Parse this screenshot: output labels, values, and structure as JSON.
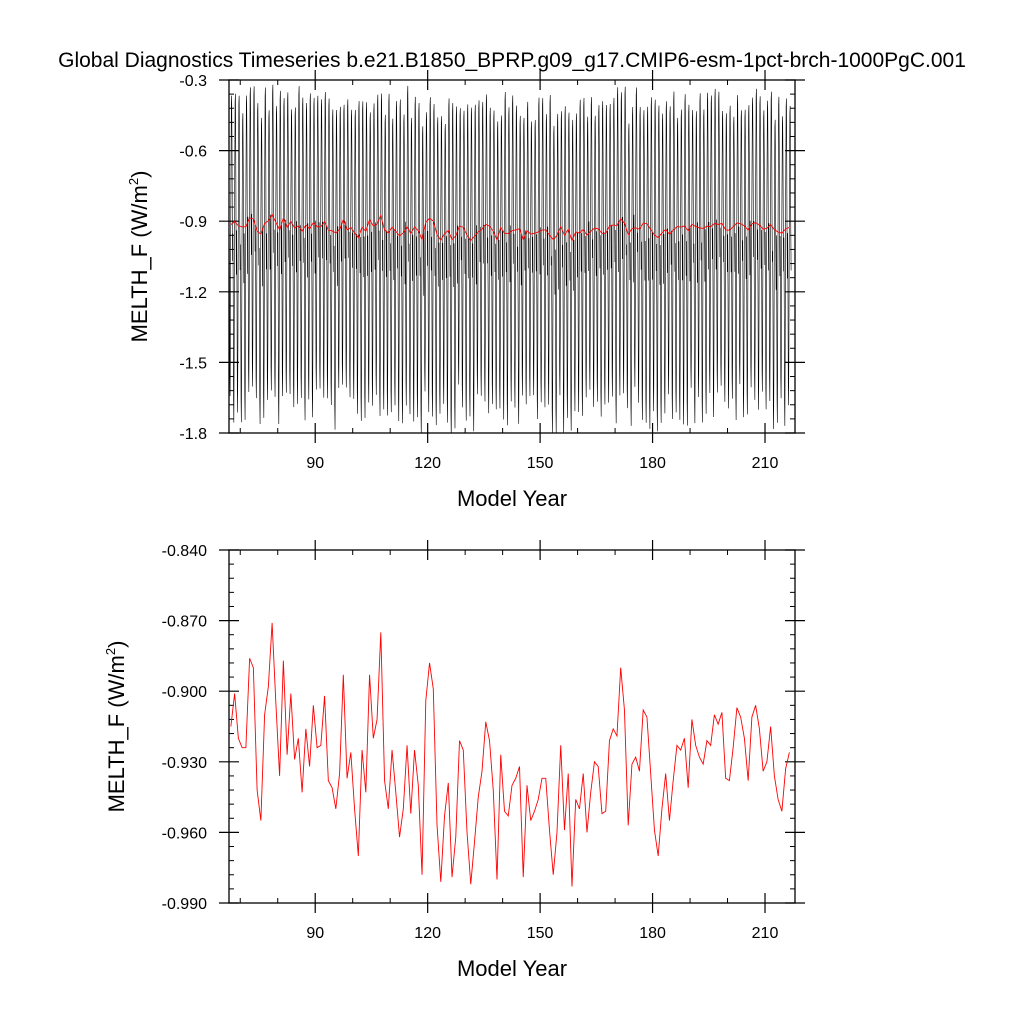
{
  "page": {
    "title": "Global Diagnostics Timeseries b.e21.B1850_BPRP.g09_g17.CMIP6-esm-1pct-brch-1000PgC.001"
  },
  "colors": {
    "monthly_series": "#000000",
    "annual_series": "#ff0000",
    "axes": "#000000",
    "background": "#ffffff"
  },
  "chart_data": [
    {
      "type": "line",
      "title": "",
      "xlabel": "Model Year",
      "ylabel_main": "MELTH_F (W/m",
      "ylabel_sup": "2",
      "ylabel_close": ")",
      "xlim": [
        67,
        218
      ],
      "ylim": [
        -1.8,
        -0.3
      ],
      "xticks": [
        90,
        120,
        150,
        180,
        210
      ],
      "xtick_labels": [
        "90",
        "120",
        "150",
        "180",
        "210"
      ],
      "yticks": [
        -0.3,
        -0.6,
        -0.9,
        -1.2,
        -1.5,
        -1.8
      ],
      "ytick_labels": [
        "-0.3",
        "-0.6",
        "-0.9",
        "-1.2",
        "-1.5",
        "-1.8"
      ],
      "grid": false,
      "series": [
        {
          "kind": "monthly",
          "note": "monthly values oscillating between about -1.78 and -0.36 each year",
          "seasonal_max": -0.4,
          "seasonal_min": -1.6,
          "color": "#000000"
        },
        {
          "kind": "annual-mean",
          "color": "#ff0000"
        }
      ]
    },
    {
      "type": "line",
      "title": "",
      "xlabel": "Model Year",
      "ylabel_main": "MELTH_F (W/m",
      "ylabel_sup": "2",
      "ylabel_close": ")",
      "xlim": [
        67,
        218
      ],
      "ylim": [
        -0.99,
        -0.84
      ],
      "xticks": [
        90,
        120,
        150,
        180,
        210
      ],
      "xtick_labels": [
        "90",
        "120",
        "150",
        "180",
        "210"
      ],
      "yticks": [
        -0.84,
        -0.87,
        -0.9,
        -0.93,
        -0.96,
        -0.99
      ],
      "ytick_labels": [
        "-0.840",
        "-0.870",
        "-0.900",
        "-0.930",
        "-0.960",
        "-0.990"
      ],
      "grid": false,
      "series": [
        {
          "kind": "annual-mean",
          "color": "#ff0000",
          "x_start": 67,
          "values": [
            -0.915,
            -0.901,
            -0.92,
            -0.924,
            -0.924,
            -0.886,
            -0.89,
            -0.942,
            -0.955,
            -0.91,
            -0.898,
            -0.871,
            -0.905,
            -0.936,
            -0.887,
            -0.927,
            -0.901,
            -0.929,
            -0.92,
            -0.943,
            -0.916,
            -0.932,
            -0.906,
            -0.924,
            -0.923,
            -0.902,
            -0.938,
            -0.941,
            -0.95,
            -0.935,
            -0.893,
            -0.937,
            -0.926,
            -0.95,
            -0.97,
            -0.925,
            -0.943,
            -0.893,
            -0.92,
            -0.912,
            -0.875,
            -0.938,
            -0.95,
            -0.925,
            -0.943,
            -0.962,
            -0.95,
            -0.923,
            -0.952,
            -0.925,
            -0.94,
            -0.978,
            -0.904,
            -0.888,
            -0.899,
            -0.957,
            -0.981,
            -0.953,
            -0.939,
            -0.979,
            -0.962,
            -0.921,
            -0.925,
            -0.96,
            -0.982,
            -0.964,
            -0.945,
            -0.934,
            -0.913,
            -0.921,
            -0.942,
            -0.98,
            -0.927,
            -0.951,
            -0.953,
            -0.94,
            -0.937,
            -0.932,
            -0.979,
            -0.94,
            -0.955,
            -0.951,
            -0.946,
            -0.937,
            -0.937,
            -0.959,
            -0.978,
            -0.96,
            -0.923,
            -0.959,
            -0.935,
            -0.983,
            -0.946,
            -0.95,
            -0.935,
            -0.96,
            -0.943,
            -0.93,
            -0.932,
            -0.952,
            -0.951,
            -0.921,
            -0.916,
            -0.919,
            -0.89,
            -0.908,
            -0.957,
            -0.931,
            -0.928,
            -0.934,
            -0.908,
            -0.911,
            -0.935,
            -0.959,
            -0.97,
            -0.95,
            -0.935,
            -0.955,
            -0.938,
            -0.923,
            -0.925,
            -0.92,
            -0.941,
            -0.912,
            -0.923,
            -0.928,
            -0.931,
            -0.921,
            -0.923,
            -0.91,
            -0.914,
            -0.909,
            -0.937,
            -0.938,
            -0.924,
            -0.907,
            -0.911,
            -0.92,
            -0.938,
            -0.911,
            -0.906,
            -0.916,
            -0.934,
            -0.93,
            -0.915,
            -0.936,
            -0.946,
            -0.951,
            -0.933,
            -0.926
          ]
        }
      ]
    }
  ]
}
